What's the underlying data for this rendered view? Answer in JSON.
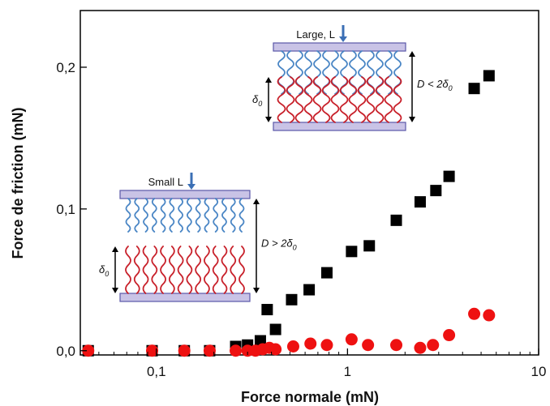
{
  "chart_data": {
    "type": "scatter",
    "xlabel": "Force normale (mN)",
    "ylabel": "Force de friction (mN)",
    "xscale": "log",
    "xlim": [
      0.04,
      10
    ],
    "ylim": [
      -0.003,
      0.24
    ],
    "xticks": [
      {
        "value": 0.1,
        "label": "0,1"
      },
      {
        "value": 1,
        "label": "1"
      },
      {
        "value": 10,
        "label": "10"
      }
    ],
    "yticks": [
      {
        "value": 0.0,
        "label": "0,0"
      },
      {
        "value": 0.1,
        "label": "0,1"
      },
      {
        "value": 0.2,
        "label": "0,2"
      }
    ],
    "grid": false,
    "legend": "none",
    "series": [
      {
        "marker": "square",
        "color": "#000000",
        "points": [
          [
            0.044,
            0.0
          ],
          [
            0.095,
            0.0
          ],
          [
            0.14,
            0.0
          ],
          [
            0.19,
            0.0
          ],
          [
            0.26,
            0.003
          ],
          [
            0.3,
            0.004
          ],
          [
            0.35,
            0.007
          ],
          [
            0.38,
            0.029
          ],
          [
            0.42,
            0.015
          ],
          [
            0.51,
            0.036
          ],
          [
            0.63,
            0.043
          ],
          [
            0.78,
            0.055
          ],
          [
            1.05,
            0.07
          ],
          [
            1.3,
            0.074
          ],
          [
            1.8,
            0.092
          ],
          [
            2.4,
            0.105
          ],
          [
            2.9,
            0.113
          ],
          [
            3.4,
            0.123
          ],
          [
            4.6,
            0.185
          ],
          [
            5.5,
            0.194
          ]
        ]
      },
      {
        "marker": "circle",
        "color": "#ee1111",
        "points": [
          [
            0.044,
            0.0
          ],
          [
            0.095,
            0.0
          ],
          [
            0.14,
            0.0
          ],
          [
            0.19,
            0.0
          ],
          [
            0.26,
            0.0
          ],
          [
            0.3,
            0.0
          ],
          [
            0.33,
            0.0
          ],
          [
            0.36,
            0.001
          ],
          [
            0.39,
            0.002
          ],
          [
            0.42,
            0.001
          ],
          [
            0.52,
            0.003
          ],
          [
            0.64,
            0.005
          ],
          [
            0.78,
            0.004
          ],
          [
            1.05,
            0.008
          ],
          [
            1.28,
            0.004
          ],
          [
            1.8,
            0.004
          ],
          [
            2.4,
            0.002
          ],
          [
            2.8,
            0.004
          ],
          [
            3.4,
            0.011
          ],
          [
            4.6,
            0.026
          ],
          [
            5.5,
            0.025
          ]
        ]
      }
    ],
    "insets": [
      {
        "id": "large",
        "load_label": "Large, L",
        "delta_label": "δ0",
        "distance_label": "D < 2δ0",
        "blue_amp": 8,
        "red_amp": 9
      },
      {
        "id": "small",
        "load_label": "Small L",
        "delta_label": "δ0",
        "distance_label": "D > 2δ0",
        "blue_amp": 5,
        "red_amp": 6
      }
    ]
  }
}
